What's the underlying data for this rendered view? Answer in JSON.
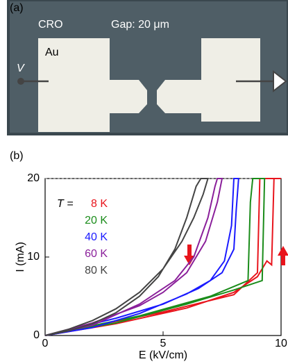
{
  "panel_a": {
    "panel_label": "(a)",
    "material": "CRO",
    "gap": "Gap: 20 μm",
    "electrode": "Au",
    "voltage": "V"
  },
  "chart_data": {
    "type": "line",
    "panel_label": "(b)",
    "xlabel": "E (kV/cm)",
    "ylabel": "I (mA)",
    "legend_title": "T =",
    "xlim": [
      0,
      10
    ],
    "ylim": [
      0,
      20
    ],
    "xticks": [
      0,
      5,
      10
    ],
    "yticks": [
      0,
      10,
      20
    ],
    "series": [
      {
        "name": "8 K",
        "color": "#e8141c",
        "x": [
          0,
          3,
          6,
          8,
          9,
          9.4,
          9.6,
          9.7,
          10,
          9.1,
          9.0,
          8,
          5,
          0
        ],
        "values": [
          0,
          1.5,
          3.5,
          5.5,
          7.5,
          9.5,
          9,
          20,
          20,
          20,
          8,
          5.2,
          3,
          0
        ]
      },
      {
        "name": "20 K",
        "color": "#1a8c1a",
        "x": [
          0,
          3,
          6,
          8,
          9.2,
          9.3,
          8.8,
          8.7,
          8.6,
          7,
          4,
          0
        ],
        "values": [
          0,
          1.6,
          4,
          5.8,
          7,
          20,
          20,
          17,
          7,
          5,
          2.5,
          0
        ]
      },
      {
        "name": "40 K",
        "color": "#1a1aff",
        "x": [
          0,
          2,
          4,
          6,
          7,
          7.6,
          7.9,
          8,
          8.2,
          8.1,
          8.0,
          7.5,
          6.5,
          5,
          3,
          0
        ],
        "values": [
          0,
          1,
          2.8,
          5.3,
          7,
          9.5,
          14,
          20,
          20,
          16,
          11,
          8,
          6,
          4,
          2.2,
          0
        ]
      },
      {
        "name": "60 K",
        "color": "#8a1f9a",
        "x": [
          0,
          2,
          4,
          5.5,
          6.3,
          6.9,
          7.2,
          7.3,
          7.5,
          7.3,
          6.8,
          6,
          5,
          4,
          2,
          0
        ],
        "values": [
          0,
          1.3,
          4,
          7,
          10,
          15,
          19,
          20,
          20,
          17,
          12,
          8,
          5.5,
          3.8,
          1.6,
          0
        ]
      },
      {
        "name": "80 K",
        "color": "#444444",
        "x": [
          0,
          1,
          2,
          3,
          4,
          4.8,
          5.5,
          6,
          6.4,
          6.6,
          6.9,
          6.7,
          6.3,
          5.8,
          5,
          4,
          3,
          2,
          1,
          0
        ],
        "values": [
          0,
          0.6,
          1.5,
          2.9,
          5,
          7.5,
          11,
          15,
          19,
          20,
          20,
          18,
          15,
          12,
          8.5,
          5.5,
          3.4,
          1.9,
          0.8,
          0
        ]
      }
    ]
  }
}
